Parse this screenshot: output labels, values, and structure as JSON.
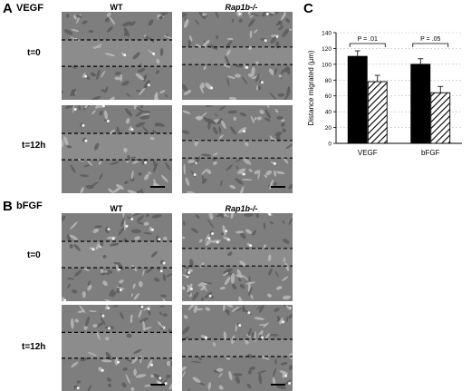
{
  "panels": {
    "a": {
      "letter": "A",
      "title": "VEGF",
      "col_wt": "WT",
      "col_ko": "Rap1b-/-",
      "row1": "t=0",
      "row2": "t=12h"
    },
    "b": {
      "letter": "B",
      "title": "bFGF",
      "col_wt": "WT",
      "col_ko": "Rap1b-/-",
      "row1": "t=0",
      "row2": "t=12h"
    },
    "c": {
      "letter": "C"
    }
  },
  "colors": {
    "wt_bar": "#000000",
    "ko_bar_hatch": "#000000",
    "micro_bg": "#7e7e7e"
  },
  "chart_data": {
    "type": "bar",
    "categories": [
      "VEGF",
      "bFGF"
    ],
    "series": [
      {
        "values": [
          110,
          100
        ],
        "errors": [
          7,
          7
        ],
        "fill": "solid"
      },
      {
        "values": [
          78,
          64
        ],
        "errors": [
          8,
          8
        ],
        "fill": "hatched"
      }
    ],
    "ylabel": "Distance migrated (µm)",
    "ylim": [
      0,
      140
    ],
    "yticks": [
      "0",
      "20",
      "40",
      "60",
      "80",
      "100",
      "120",
      "140"
    ],
    "grid": "horizontal dashed",
    "annotations": [
      {
        "category": "VEGF",
        "text": "P = .01"
      },
      {
        "category": "bFGF",
        "text": "P = .05"
      }
    ]
  }
}
